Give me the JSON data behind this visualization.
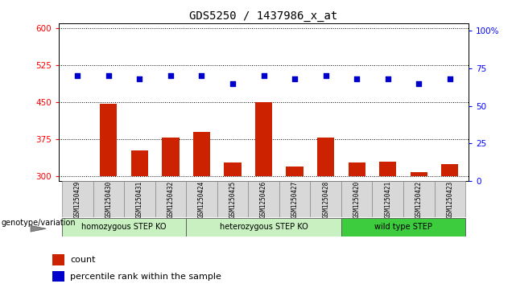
{
  "title": "GDS5250 / 1437986_x_at",
  "samples": [
    "GSM1250429",
    "GSM1250430",
    "GSM1250431",
    "GSM1250432",
    "GSM1250424",
    "GSM1250425",
    "GSM1250426",
    "GSM1250427",
    "GSM1250428",
    "GSM1250420",
    "GSM1250421",
    "GSM1250422",
    "GSM1250423"
  ],
  "counts": [
    300,
    447,
    352,
    378,
    390,
    327,
    450,
    320,
    378,
    327,
    330,
    308,
    325
  ],
  "percentile_ranks": [
    70,
    70,
    68,
    70,
    70,
    65,
    70,
    68,
    70,
    68,
    68,
    65,
    68
  ],
  "groups": [
    {
      "label": "homozygous STEP KO",
      "start": 0,
      "end": 4,
      "color": "#c8f0c0"
    },
    {
      "label": "heterozygous STEP KO",
      "start": 4,
      "end": 9,
      "color": "#c8f0c0"
    },
    {
      "label": "wild type STEP",
      "start": 9,
      "end": 13,
      "color": "#3dcc3d"
    }
  ],
  "ylim_left": [
    290,
    610
  ],
  "ylim_right": [
    0,
    105
  ],
  "yticks_left": [
    300,
    375,
    450,
    525,
    600
  ],
  "yticks_right": [
    0,
    25,
    50,
    75,
    100
  ],
  "bar_color": "#cc2200",
  "dot_color": "#0000cc",
  "bar_width": 0.55,
  "baseline": 300,
  "bg_plot": "#ffffff",
  "bg_label": "#d8d8d8",
  "title_fontsize": 10,
  "tick_fontsize": 7.5,
  "label_fontsize": 7
}
